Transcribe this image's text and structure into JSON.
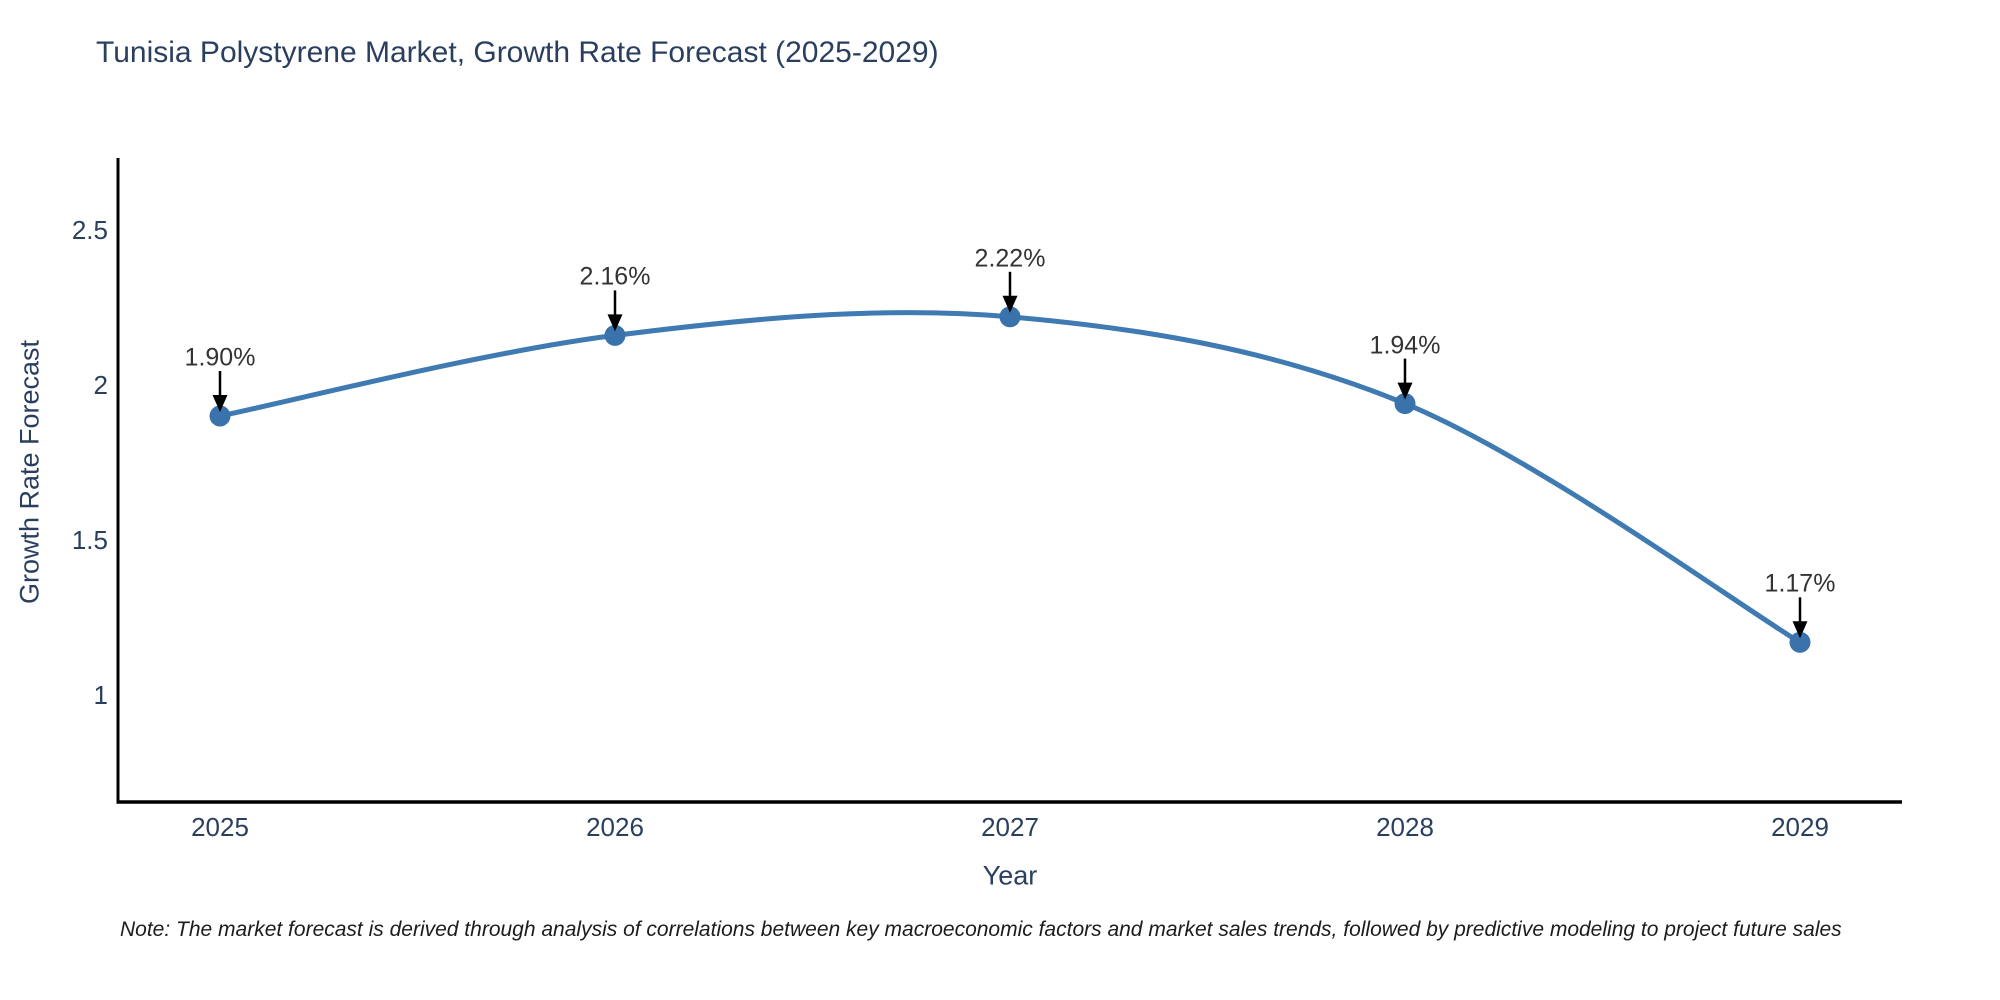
{
  "footnote": "Note: The market forecast is derived through analysis of correlations between key macroeconomic factors and market sales trends, followed by predictive modeling to project future sales",
  "chart_data": {
    "type": "line",
    "title": "Tunisia Polystyrene Market, Growth Rate Forecast (2025-2029)",
    "xlabel": "Year",
    "ylabel": "Growth Rate Forecast",
    "categories": [
      "2025",
      "2026",
      "2027",
      "2028",
      "2029"
    ],
    "series": [
      {
        "name": "Growth Rate Forecast",
        "values": [
          1.9,
          2.16,
          2.22,
          1.94,
          1.17
        ]
      }
    ],
    "point_labels": [
      "1.90%",
      "2.16%",
      "2.22%",
      "1.94%",
      "1.17%"
    ],
    "ytick_values": [
      2.5,
      2,
      1.5,
      1
    ],
    "ytick_labels": [
      "2.5",
      "2",
      "1.5",
      "1"
    ],
    "ylim": [
      0.65,
      2.73
    ],
    "grid": false,
    "legend": false,
    "line_shape": "spline",
    "annotations": "black arrows pointing down onto each marker",
    "colors": {
      "line": "#3f7ab2",
      "marker": "#3a73ab",
      "arrow": "#000000",
      "axis_spine": "#000000",
      "title_text": "#2a3f5f",
      "tick_text": "#2a3f5f",
      "annotation_text": "#333333",
      "background": "#ffffff"
    }
  }
}
